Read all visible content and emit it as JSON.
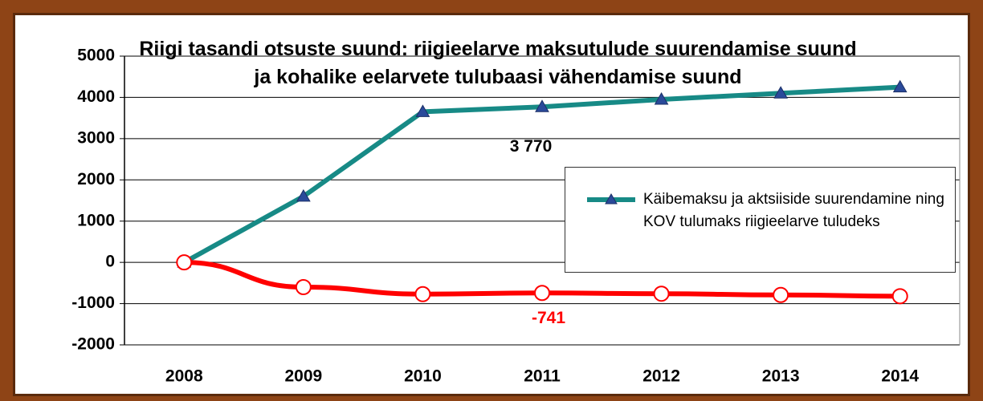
{
  "chart_data": {
    "type": "line",
    "title": "Riigi tasandi otsuste suund: riigieelarve maksutulude suurendamise suund ja kohalike eelarvete tulubaasi vähendamise suund",
    "categories": [
      "2008",
      "2009",
      "2010",
      "2011",
      "2012",
      "2013",
      "2014"
    ],
    "series": [
      {
        "name": "Käibemaksu ja aktsiiside suurendamine ning KOV tulumaks riigieelarve tuludeks",
        "color": "#178a86",
        "values": [
          0,
          1600,
          3650,
          3770,
          3950,
          4100,
          4250
        ],
        "value_labels": [
          null,
          null,
          null,
          "3 770",
          null,
          null,
          null
        ]
      },
      {
        "color": "#ff0000",
        "values": [
          0,
          -600,
          -770,
          -741,
          -760,
          -790,
          -820
        ],
        "value_labels": [
          null,
          null,
          null,
          "-741",
          null,
          null,
          null
        ]
      }
    ],
    "ylim": [
      -2000,
      5000
    ],
    "yticks": [
      -2000,
      -1000,
      0,
      1000,
      2000,
      3000,
      4000,
      5000
    ],
    "grid": true
  }
}
